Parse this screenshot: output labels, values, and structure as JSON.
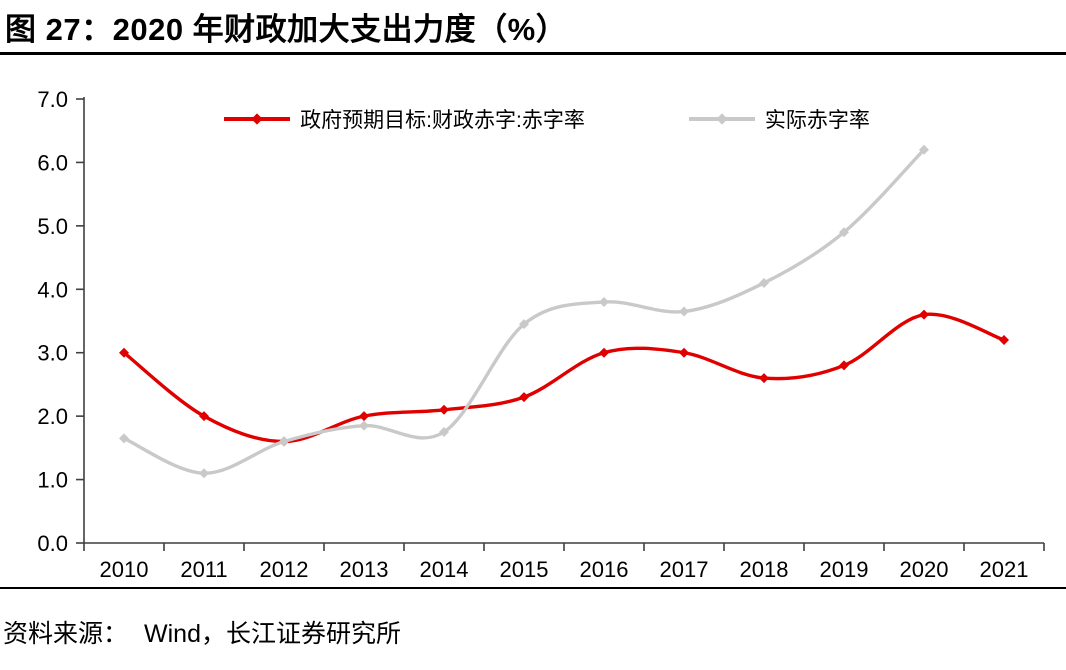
{
  "header": {
    "title": "图 27：2020 年财政加大支出力度（%）"
  },
  "footer": {
    "source_label": "资料来源：",
    "source_value": "Wind，长江证券研究所"
  },
  "chart_data": {
    "type": "line",
    "title": "图 27：2020 年财政加大支出力度（%）",
    "xlabel": "",
    "ylabel": "",
    "unit": "%",
    "categories": [
      "2010",
      "2011",
      "2012",
      "2013",
      "2014",
      "2015",
      "2016",
      "2017",
      "2018",
      "2019",
      "2020",
      "2021"
    ],
    "series": [
      {
        "name": "政府预期目标:财政赤字:赤字率",
        "color": "#e00000",
        "values": [
          3.0,
          2.0,
          1.6,
          2.0,
          2.1,
          2.3,
          3.0,
          3.0,
          2.6,
          2.8,
          3.6,
          3.2
        ]
      },
      {
        "name": "实际赤字率",
        "color": "#c9c9c9",
        "values": [
          1.65,
          1.1,
          1.6,
          1.85,
          1.75,
          3.45,
          3.8,
          3.65,
          4.1,
          4.9,
          6.2,
          null
        ]
      }
    ],
    "ylim": [
      0,
      7
    ],
    "yticks": [
      0,
      1,
      2,
      3,
      4,
      5,
      6,
      7
    ],
    "ytick_labels": [
      "0.0",
      "1.0",
      "2.0",
      "3.0",
      "4.0",
      "5.0",
      "6.0",
      "7.0"
    ],
    "grid": false,
    "smooth": true,
    "marker": "diamond",
    "legend_position": "top-center",
    "axis_color": "#3f3f3f",
    "text_color": "#000000"
  }
}
